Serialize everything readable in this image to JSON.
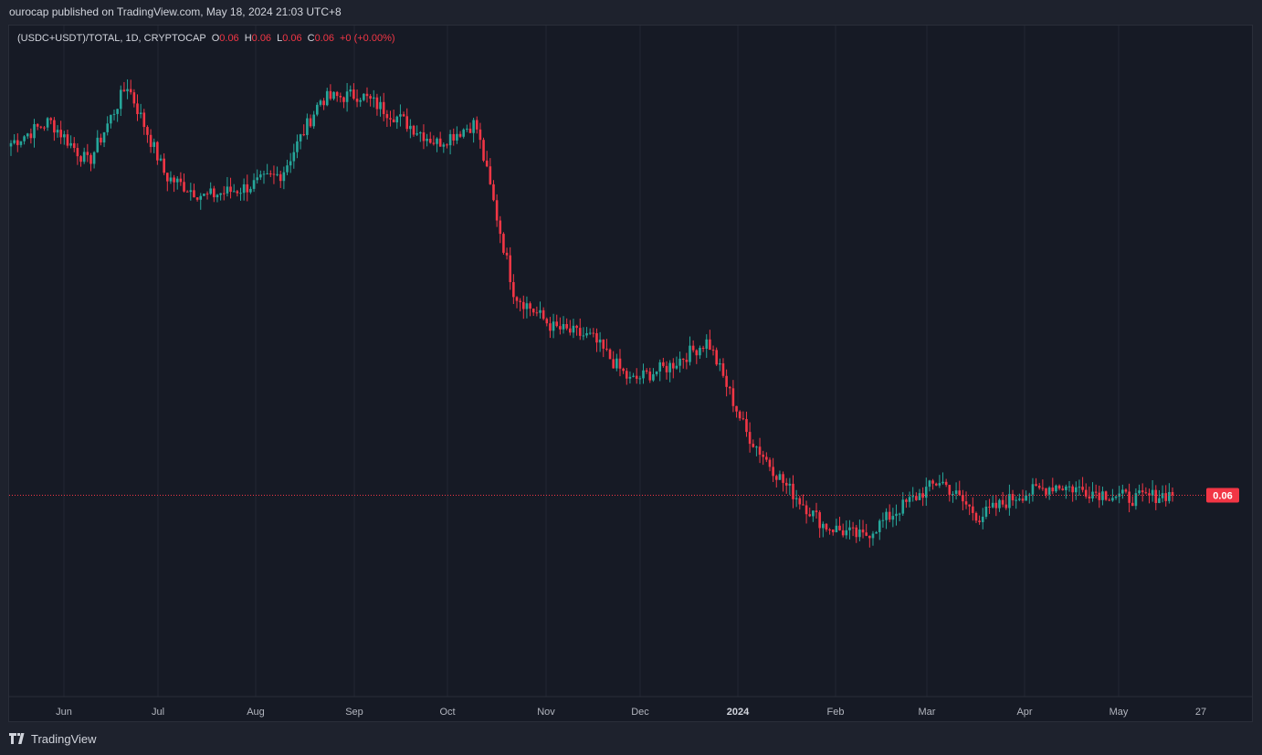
{
  "header": {
    "text": "ourocap published on TradingView.com, May 18, 2024 21:03 UTC+8"
  },
  "legend": {
    "symbol": "(USDC+USDT)/TOTAL, 1D, CRYPTOCAP",
    "o_key": "O",
    "o_val": "0.06",
    "h_key": "H",
    "h_val": "0.06",
    "l_key": "L",
    "l_val": "0.06",
    "c_key": "C",
    "c_val": "0.06",
    "change": "+0 (+0.00%)"
  },
  "price_label": "0.06",
  "footer": {
    "brand": "TradingView"
  },
  "colors": {
    "up": "#26a69a",
    "down": "#f23645",
    "grid": "#232733",
    "background": "#161a25"
  },
  "chart_data": {
    "type": "candlestick",
    "timeframe": "1D",
    "symbol": "(USDC+USDT)/TOTAL",
    "x_tick_labels": [
      "Jun",
      "Jul",
      "Aug",
      "Sep",
      "Oct",
      "Nov",
      "Dec",
      "2024",
      "Feb",
      "Mar",
      "Apr",
      "May",
      "27"
    ],
    "last_price": 0.06,
    "price_trend_close": [
      0.081,
      0.0823,
      0.0798,
      0.0845,
      0.079,
      0.0778,
      0.0783,
      0.0792,
      0.0836,
      0.0839,
      0.0825,
      0.081,
      0.0822,
      0.072,
      0.07,
      0.0694,
      0.0668,
      0.0677,
      0.0692,
      0.0637,
      0.0606,
      0.0582,
      0.0575,
      0.0593,
      0.0609,
      0.0587,
      0.06,
      0.0606,
      0.0602,
      0.0598,
      0.0601
    ]
  }
}
